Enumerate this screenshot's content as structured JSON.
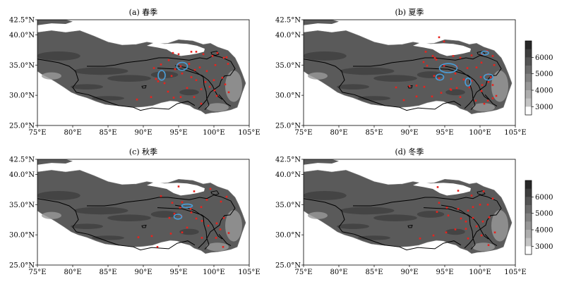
{
  "figure": {
    "panels": [
      {
        "id": "a",
        "title": "(a) 春季",
        "stations": [
          [
            94.2,
            37.0
          ],
          [
            95.0,
            36.8
          ],
          [
            96.8,
            37.2
          ],
          [
            97.5,
            37.2
          ],
          [
            98.5,
            36.8
          ],
          [
            99.8,
            36.5
          ],
          [
            100.5,
            37.0
          ],
          [
            101.4,
            36.2
          ],
          [
            101.8,
            36.3
          ],
          [
            93.6,
            35.8
          ],
          [
            94.5,
            34.3
          ],
          [
            95.3,
            34.8
          ],
          [
            95.0,
            35.2
          ],
          [
            96.5,
            35.2
          ],
          [
            97.3,
            34.2
          ],
          [
            98.0,
            34.6
          ],
          [
            99.0,
            34.0
          ],
          [
            100.2,
            35.0
          ],
          [
            102.0,
            35.2
          ],
          [
            91.8,
            32.7
          ],
          [
            92.1,
            32.3
          ],
          [
            93.0,
            32.0
          ],
          [
            94.0,
            33.2
          ],
          [
            95.5,
            33.6
          ],
          [
            96.8,
            33.0
          ],
          [
            97.5,
            32.5
          ],
          [
            98.8,
            32.2
          ],
          [
            100.0,
            32.5
          ],
          [
            101.2,
            32.9
          ],
          [
            101.6,
            31.8
          ],
          [
            100.1,
            30.8
          ],
          [
            99.4,
            31.4
          ],
          [
            98.2,
            31.0
          ],
          [
            96.2,
            31.2
          ],
          [
            95.3,
            29.7
          ],
          [
            94.3,
            29.6
          ],
          [
            97.2,
            29.7
          ],
          [
            98.2,
            28.6
          ],
          [
            100.4,
            29.9
          ],
          [
            102.1,
            30.5
          ],
          [
            93.5,
            30.6
          ],
          [
            91.1,
            29.7
          ],
          [
            89.1,
            29.3
          ],
          [
            92.5,
            35.1
          ],
          [
            91.5,
            34.5
          ]
        ],
        "ellipses": [
          [
            92.6,
            33.3,
            0.5,
            0.8
          ],
          [
            95.5,
            34.8,
            0.75,
            0.65
          ]
        ]
      },
      {
        "id": "b",
        "title": "(b) 夏季",
        "stations": [
          [
            94.2,
            39.6
          ],
          [
            94.9,
            38.9
          ],
          [
            92.3,
            37.2
          ],
          [
            93.3,
            36.5
          ],
          [
            92.0,
            35.5
          ],
          [
            93.8,
            35.9
          ],
          [
            93.6,
            36.2
          ],
          [
            94.9,
            34.9
          ],
          [
            96.7,
            34.8
          ],
          [
            98.2,
            34.5
          ],
          [
            99.5,
            34.6
          ],
          [
            100.3,
            36.8
          ],
          [
            101.0,
            37.3
          ],
          [
            101.8,
            36.5
          ],
          [
            96.2,
            36.5
          ],
          [
            97.2,
            36.2
          ],
          [
            98.8,
            36.6
          ],
          [
            100.2,
            35.4
          ],
          [
            102.0,
            35.0
          ],
          [
            101.1,
            33.5
          ],
          [
            93.5,
            33.2
          ],
          [
            94.2,
            32.8
          ],
          [
            95.9,
            32.7
          ],
          [
            96.5,
            33.6
          ],
          [
            97.7,
            32.6
          ],
          [
            98.8,
            32.4
          ],
          [
            100.1,
            33.0
          ],
          [
            101.2,
            32.2
          ],
          [
            101.5,
            33.0
          ],
          [
            100.3,
            31.7
          ],
          [
            100.2,
            30.7
          ],
          [
            98.5,
            31.3
          ],
          [
            96.7,
            31.2
          ],
          [
            95.8,
            31.0
          ],
          [
            94.5,
            30.4
          ],
          [
            93.2,
            29.8
          ],
          [
            91.0,
            29.8
          ],
          [
            89.2,
            29.2
          ],
          [
            90.0,
            31.5
          ],
          [
            92.1,
            31.4
          ],
          [
            95.9,
            30.9
          ],
          [
            97.2,
            29.7
          ],
          [
            99.4,
            29.1
          ],
          [
            101.1,
            29.1
          ],
          [
            101.8,
            29.5
          ],
          [
            102.3,
            29.9
          ],
          [
            100.6,
            28.6
          ],
          [
            101.8,
            31.7
          ],
          [
            92.5,
            34.9
          ],
          [
            91.0,
            31.6
          ],
          [
            88.1,
            31.3
          ]
        ],
        "ellipses": [
          [
            94.3,
            33.0,
            0.55,
            0.5
          ],
          [
            95.5,
            34.5,
            1.25,
            0.75
          ],
          [
            98.3,
            32.2,
            0.4,
            0.65
          ],
          [
            101.2,
            33.0,
            0.65,
            0.5
          ],
          [
            100.7,
            37.0,
            0.5,
            0.3
          ]
        ]
      },
      {
        "id": "c",
        "title": "(c) 秋季",
        "stations": [
          [
            95.0,
            38.0
          ],
          [
            97.2,
            37.2
          ],
          [
            99.5,
            37.6
          ],
          [
            101.8,
            36.3
          ],
          [
            101.0,
            35.5
          ],
          [
            99.0,
            35.8
          ],
          [
            98.2,
            34.6
          ],
          [
            96.7,
            34.3
          ],
          [
            95.2,
            34.5
          ],
          [
            94.1,
            35.3
          ],
          [
            92.5,
            36.4
          ],
          [
            95.5,
            35.4
          ],
          [
            94.4,
            33.5
          ],
          [
            93.7,
            32.8
          ],
          [
            95.4,
            33.1
          ],
          [
            96.8,
            33.7
          ],
          [
            97.5,
            32.7
          ],
          [
            98.3,
            32.3
          ],
          [
            100.4,
            31.9
          ],
          [
            101.4,
            32.8
          ],
          [
            100.9,
            30.9
          ],
          [
            99.2,
            31.5
          ],
          [
            96.2,
            31.2
          ],
          [
            95.5,
            30.4
          ],
          [
            93.9,
            30.2
          ],
          [
            92.0,
            28.0
          ],
          [
            98.3,
            29.5
          ],
          [
            100.3,
            29.5
          ],
          [
            102.1,
            30.3
          ],
          [
            101.3,
            28.0
          ],
          [
            91.2,
            29.8
          ],
          [
            89.3,
            29.6
          ]
        ],
        "ellipses": [
          [
            94.9,
            33.0,
            0.55,
            0.4
          ],
          [
            96.2,
            34.8,
            0.75,
            0.28
          ]
        ]
      },
      {
        "id": "d",
        "title": "(d) 冬季",
        "stations": [
          [
            94.0,
            37.9
          ],
          [
            96.9,
            37.3
          ],
          [
            98.8,
            36.5
          ],
          [
            100.5,
            37.2
          ],
          [
            101.8,
            36.0
          ],
          [
            101.1,
            35.0
          ],
          [
            100.0,
            35.0
          ],
          [
            99.0,
            34.6
          ],
          [
            98.3,
            34.0
          ],
          [
            96.9,
            34.3
          ],
          [
            95.3,
            34.5
          ],
          [
            94.2,
            35.3
          ],
          [
            93.9,
            33.8
          ],
          [
            95.5,
            33.2
          ],
          [
            97.3,
            32.7
          ],
          [
            98.0,
            32.2
          ],
          [
            99.0,
            32.8
          ],
          [
            100.4,
            32.2
          ],
          [
            101.3,
            32.9
          ],
          [
            99.5,
            31.4
          ],
          [
            98.0,
            31.0
          ],
          [
            96.5,
            30.9
          ],
          [
            95.2,
            30.4
          ],
          [
            93.4,
            29.9
          ],
          [
            91.5,
            29.4
          ],
          [
            100.2,
            29.9
          ],
          [
            102.1,
            30.4
          ],
          [
            101.2,
            28.3
          ],
          [
            98.3,
            29.4
          ]
        ],
        "ellipses": []
      }
    ],
    "colorbar": {
      "ticks": [
        "6000",
        "5000",
        "4000",
        "3000"
      ],
      "tick_values": [
        6000,
        5000,
        4000,
        3000
      ],
      "range": [
        2500,
        7000
      ]
    },
    "axes": {
      "x_ticks": [
        "75°E",
        "80°E",
        "85°E",
        "90°E",
        "95°E",
        "100°E",
        "105°E"
      ],
      "x_values": [
        75,
        80,
        85,
        90,
        95,
        100,
        105
      ],
      "y_ticks": [
        "42.5°N",
        "40.0°N",
        "35.0°N",
        "30.0°N",
        "25.0°N"
      ],
      "y_values": [
        42.5,
        40,
        35,
        30,
        25
      ],
      "lon_range": [
        75,
        105
      ],
      "lat_range": [
        25,
        42.5
      ]
    },
    "colors": {
      "station": "#e8231e",
      "ellipse": "#4a9ed8",
      "boundary": "#000000",
      "terrain_high": "#2b2b2b",
      "terrain_mid": "#5a5a5a",
      "terrain_low": "#9a9a9a"
    }
  }
}
